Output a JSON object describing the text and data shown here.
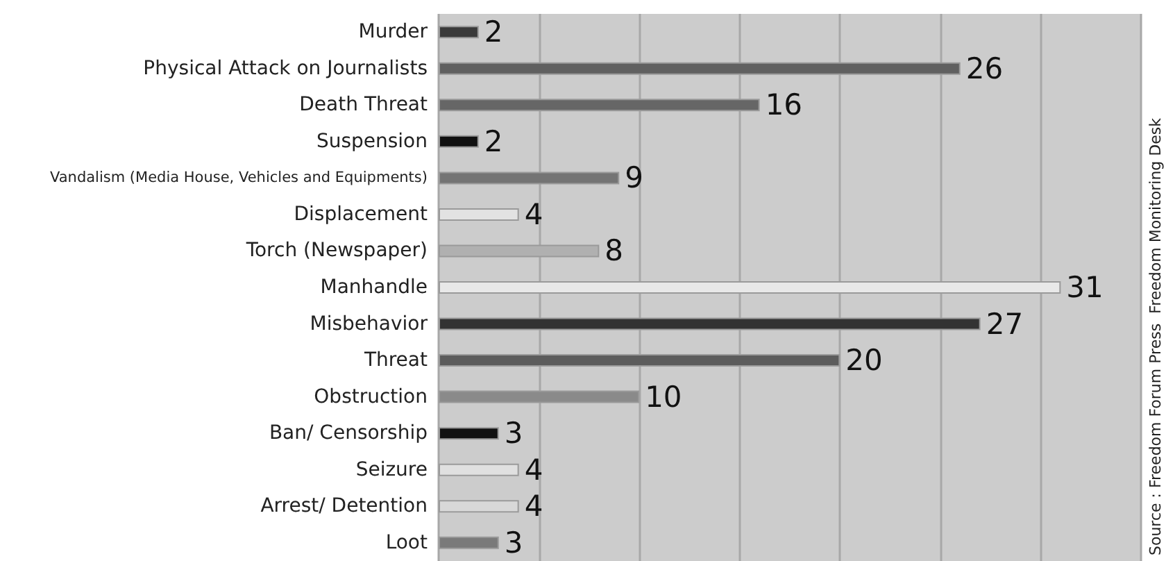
{
  "chart_data": {
    "type": "bar",
    "orientation": "horizontal",
    "categories": [
      "Murder",
      "Physical Attack on Journalists",
      "Death Threat",
      "Suspension",
      "Vandalism (Media House, Vehicles and Equipments)",
      "Displacement",
      "Torch (Newspaper)",
      "Manhandle",
      "Misbehavior",
      "Threat",
      "Obstruction",
      "Ban/ Censorship",
      "Seizure",
      "Arrest/ Detention",
      "Loot"
    ],
    "values": [
      2,
      26,
      16,
      2,
      9,
      4,
      8,
      31,
      27,
      20,
      10,
      3,
      4,
      4,
      3
    ],
    "colors": [
      "#3a3a3a",
      "#606060",
      "#666666",
      "#111111",
      "#747474",
      "#e2e2e2",
      "#b0b0b0",
      "#e8e8e8",
      "#333333",
      "#5c5c5c",
      "#8a8a8a",
      "#111111",
      "#e0e0e0",
      "#d8d8d8",
      "#7a7a7a"
    ],
    "xlim": [
      0,
      35
    ],
    "xticks": [
      {
        "value": 0,
        "label": null
      },
      {
        "value": 5,
        "label": null
      },
      {
        "value": 10,
        "label": null
      },
      {
        "value": 15,
        "label": null
      },
      {
        "value": 20,
        "label": null
      },
      {
        "value": 25,
        "label": null
      },
      {
        "value": 30,
        "label": null
      },
      {
        "value": 35,
        "label": null
      }
    ],
    "grid": "x",
    "tick_labels": "y",
    "data_labels": true,
    "annotations": [
      "Source : Freedom Forum Press  Freedom Monitoring Desk"
    ]
  }
}
